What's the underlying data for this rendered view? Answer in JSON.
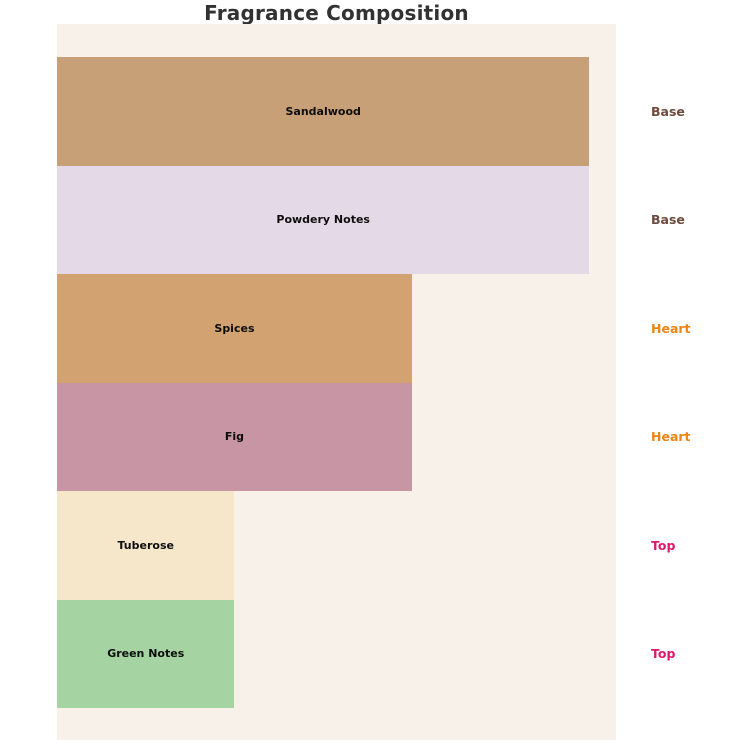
{
  "page": {
    "background": "#ffffff"
  },
  "chart_data": {
    "type": "bar",
    "orientation": "horizontal",
    "title": "Fragrance Composition",
    "categories": [
      "Sandalwood",
      "Powdery Notes",
      "Spices",
      "Fig",
      "Tuberose",
      "Green Notes"
    ],
    "values": [
      30,
      30,
      20,
      20,
      10,
      10
    ],
    "tiers": [
      "Base",
      "Base",
      "Heart",
      "Heart",
      "Top",
      "Top"
    ],
    "bar_colors": [
      "#c8a078",
      "#e4d9e7",
      "#d2a370",
      "#c795a4",
      "#f6e7cb",
      "#a6d3a2"
    ],
    "tier_colors": {
      "Base": "#6f4a3d",
      "Heart": "#ef8413",
      "Top": "#e0186b"
    },
    "bar_label_color": "#0d0d0d",
    "title_color": "#323232",
    "plot_background": "#f7f1ea",
    "xlabel": "",
    "ylabel": "",
    "xlim": [
      0,
      31.5
    ],
    "grid": false,
    "legend": "none"
  }
}
